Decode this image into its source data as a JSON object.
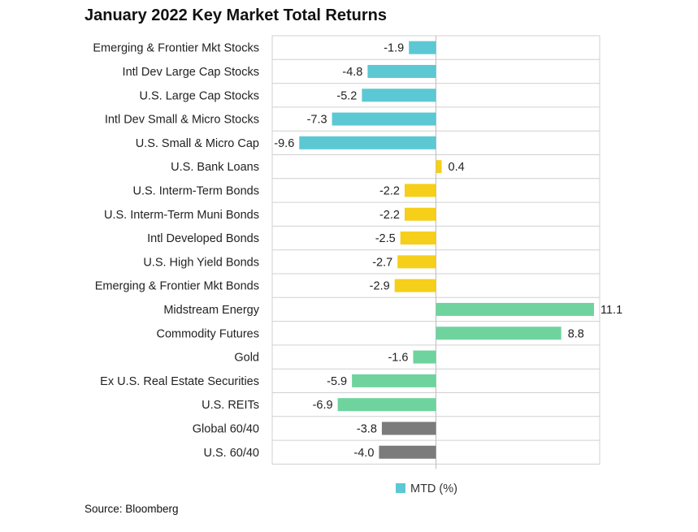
{
  "title": "January 2022 Key Market Total Returns",
  "source": "Source: Bloomberg",
  "colors": {
    "equity": "#5cc8d4",
    "fixed_income": "#f5cf1a",
    "real_assets": "#6fd39e",
    "balanced": "#7b7b7b",
    "grid": "#d0d0d0"
  },
  "chart_data": {
    "type": "bar",
    "orientation": "horizontal",
    "title": "January 2022 Key Market Total Returns",
    "categories": [
      "Emerging & Frontier Mkt Stocks",
      "Intl Dev Large Cap Stocks",
      "U.S. Large Cap Stocks",
      "Intl Dev Small & Micro Stocks",
      "U.S. Small & Micro Cap",
      "U.S. Bank Loans",
      "U.S. Interm-Term Bonds",
      "U.S. Interm-Term Muni Bonds",
      "Intl Developed Bonds",
      "U.S. High Yield Bonds",
      "Emerging & Frontier Mkt Bonds",
      "Midstream Energy",
      "Commodity Futures",
      "Gold",
      "Ex U.S. Real Estate Securities",
      "U.S. REITs",
      "Global 60/40",
      "U.S. 60/40"
    ],
    "series": [
      {
        "name": "MTD (%)",
        "values": [
          -1.9,
          -4.8,
          -5.2,
          -7.3,
          -9.6,
          0.4,
          -2.2,
          -2.2,
          -2.5,
          -2.7,
          -2.9,
          11.1,
          8.8,
          -1.6,
          -5.9,
          -6.9,
          -3.8,
          -4.0
        ],
        "value_labels": [
          "-1.9",
          "-4.8",
          "-5.2",
          "-7.3",
          "-9.6",
          "0.4",
          "-2.2",
          "-2.2",
          "-2.5",
          "-2.7",
          "-2.9",
          "11.1",
          "8.8",
          "-1.6",
          "-5.9",
          "-6.9",
          "-3.8",
          "-4.0"
        ],
        "color_groups": [
          "equity",
          "equity",
          "equity",
          "equity",
          "equity",
          "fixed_income",
          "fixed_income",
          "fixed_income",
          "fixed_income",
          "fixed_income",
          "fixed_income",
          "real_assets",
          "real_assets",
          "real_assets",
          "real_assets",
          "real_assets",
          "balanced",
          "balanced"
        ]
      }
    ],
    "xlim": [
      -11.5,
      11.5
    ],
    "grid": true,
    "legend": "bottom-center"
  }
}
